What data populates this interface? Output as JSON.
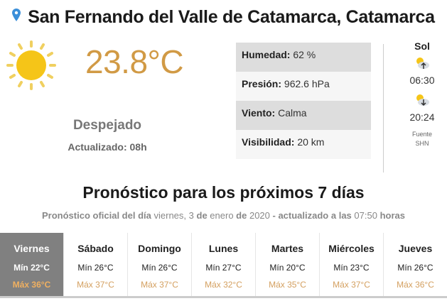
{
  "location": {
    "title": "San Fernando del Valle de Catamarca, Catamarca",
    "icon": "map-pin-icon"
  },
  "current": {
    "icon": "sun-icon",
    "temperature": "23.8°C",
    "condition": "Despejado",
    "updated": "Actualizado: 08h"
  },
  "details": [
    {
      "label": "Humedad:",
      "value": "62 %"
    },
    {
      "label": "Presión:",
      "value": "962.6 hPa"
    },
    {
      "label": "Viento:",
      "value": "Calma"
    },
    {
      "label": "Visibilidad:",
      "value": "20 km"
    }
  ],
  "sun": {
    "heading": "Sol",
    "sunrise": "06:30",
    "sunset": "20:24",
    "source_label": "Fuente",
    "source": "SHN"
  },
  "forecast": {
    "heading": "Pronóstico para los próximos 7 días",
    "sub": {
      "p1": "Pronóstico oficial del día",
      "date_day": "viernes, 3",
      "de1": "de",
      "month": "enero",
      "de2": "de",
      "year": "2020",
      "p2": "- actualizado a las",
      "time": "07:50",
      "p3": "horas"
    },
    "days": [
      {
        "name": "Viernes",
        "min": "Mín 22°C",
        "max": "Máx 36°C"
      },
      {
        "name": "Sábado",
        "min": "Mín 26°C",
        "max": "Máx 37°C"
      },
      {
        "name": "Domingo",
        "min": "Mín 26°C",
        "max": "Máx 37°C"
      },
      {
        "name": "Lunes",
        "min": "Mín 27°C",
        "max": "Máx 32°C"
      },
      {
        "name": "Martes",
        "min": "Mín 20°C",
        "max": "Máx 35°C"
      },
      {
        "name": "Miércoles",
        "min": "Mín 23°C",
        "max": "Máx 37°C"
      },
      {
        "name": "Jueves",
        "min": "Mín 26°C",
        "max": "Máx 36°C"
      }
    ]
  },
  "colors": {
    "accent": "#d19a45",
    "selected_bg": "#808080",
    "pin": "#3b8fd9",
    "sun": "#f5c518"
  }
}
